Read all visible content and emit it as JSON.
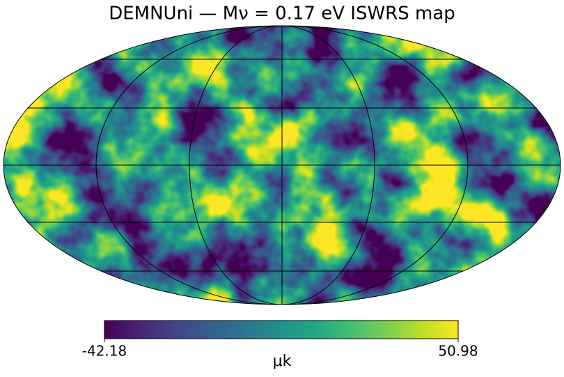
{
  "title": "DEMNUni — Mν = 0.17 eV ISWRS map",
  "colorbar": {
    "min": -42.18,
    "max": 50.98,
    "label": "μk"
  }
}
